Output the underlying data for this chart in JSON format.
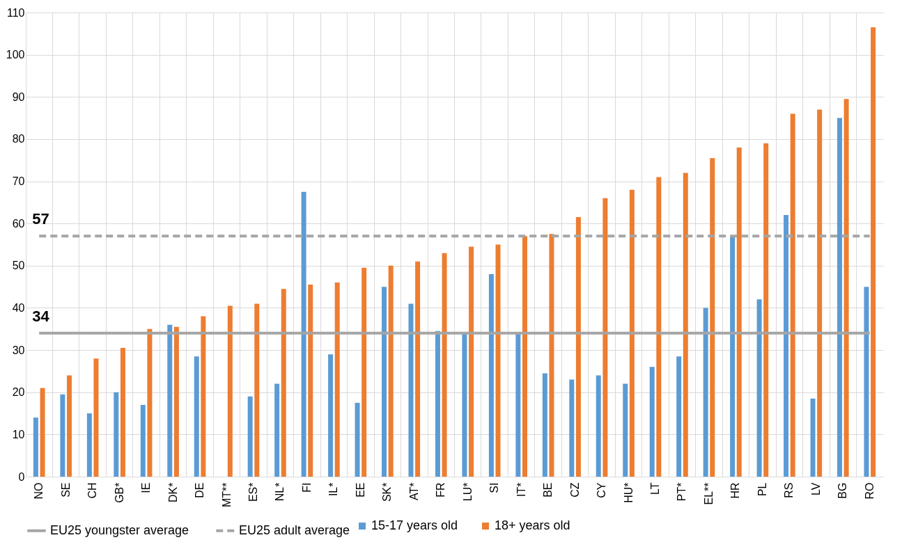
{
  "chart_data": {
    "type": "bar",
    "categories": [
      "NO",
      "SE",
      "CH",
      "GB*",
      "IE",
      "DK*",
      "DE",
      "MT**",
      "ES*",
      "NL*",
      "FI",
      "IL*",
      "EE",
      "SK*",
      "AT*",
      "FR",
      "LU*",
      "SI",
      "IT*",
      "BE",
      "CZ",
      "CY",
      "HU*",
      "LT",
      "PT*",
      "EL**",
      "HR",
      "PL",
      "RS",
      "LV",
      "BG",
      "RO"
    ],
    "series": [
      {
        "name": "15-17 years old",
        "color": "#5b9bd5",
        "values": [
          14,
          19.5,
          15,
          20,
          17,
          36,
          28.5,
          null,
          19,
          22,
          67.5,
          29,
          17.5,
          45,
          41,
          34.5,
          34,
          48,
          34,
          24.5,
          23,
          24,
          22,
          26,
          28.5,
          40,
          57,
          42,
          62,
          18.5,
          85,
          45
        ]
      },
      {
        "name": "18+ years old",
        "color": "#ed7d31",
        "values": [
          21,
          24,
          28,
          30.5,
          35,
          35.5,
          38,
          40.5,
          41,
          44.5,
          45.5,
          46,
          49.5,
          50,
          51,
          53,
          54.5,
          55,
          57,
          57.5,
          61.5,
          66,
          68,
          71,
          72,
          75.5,
          78,
          79,
          86,
          87,
          89.5,
          106.5
        ]
      },
      {
        "name": "EU25 youngster average",
        "type": "line",
        "line_style": "solid",
        "color": "#a5a5a5",
        "values": [
          34,
          34,
          34,
          34,
          34,
          34,
          34,
          34,
          34,
          34,
          34,
          34,
          34,
          34,
          34,
          34,
          34,
          34,
          34,
          34,
          34,
          34,
          34,
          34,
          34,
          34,
          34,
          34,
          34,
          34,
          34,
          34
        ]
      },
      {
        "name": "EU25 adult average",
        "type": "line",
        "line_style": "dashed",
        "color": "#a5a5a5",
        "values": [
          57,
          57,
          57,
          57,
          57,
          57,
          57,
          57,
          57,
          57,
          57,
          57,
          57,
          57,
          57,
          57,
          57,
          57,
          57,
          57,
          57,
          57,
          57,
          57,
          57,
          57,
          57,
          57,
          57,
          57,
          57,
          57
        ]
      }
    ],
    "annotations": [
      {
        "text": "34",
        "x": "NO",
        "y": 34
      },
      {
        "text": "57",
        "x": "NO",
        "y": 57
      }
    ],
    "ylim": [
      0,
      110
    ],
    "yticks": [
      0,
      10,
      20,
      30,
      40,
      50,
      60,
      70,
      80,
      90,
      100,
      110
    ],
    "grid": true,
    "legend": "bottom"
  }
}
